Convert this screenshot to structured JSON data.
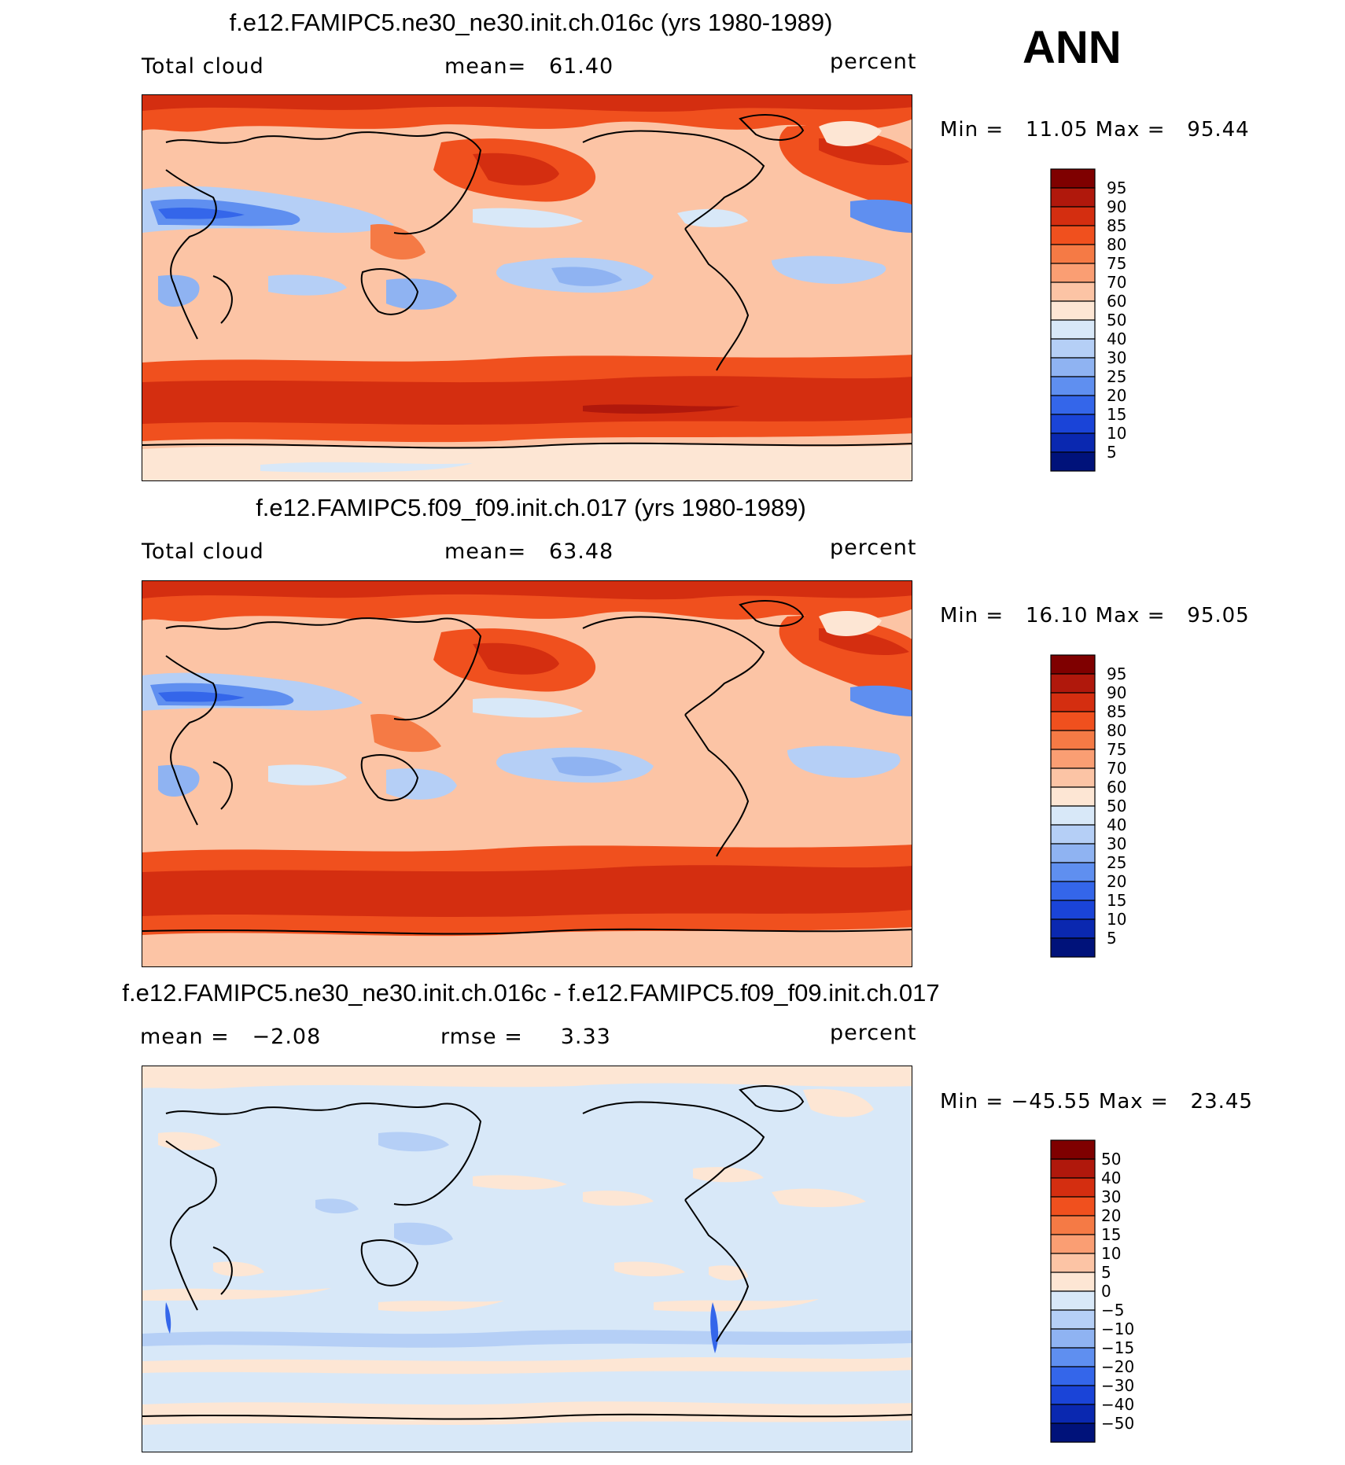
{
  "season": "ANN",
  "panels": [
    {
      "title": "f.e12.FAMIPC5.ne30_ne30.init.ch.016c (yrs 1980-1989)",
      "left_label": "Total cloud",
      "center_label": "mean=   61.40",
      "units": "percent",
      "minmax": "Min =   11.05 Max =   95.44",
      "kind": "field",
      "colorbar": {
        "labels": [
          "95",
          "90",
          "85",
          "80",
          "75",
          "70",
          "60",
          "50",
          "40",
          "30",
          "25",
          "20",
          "15",
          "10",
          "5"
        ],
        "colors": [
          "#7f0000",
          "#b0180c",
          "#d42e10",
          "#f0501e",
          "#f57a45",
          "#fa9e73",
          "#fcc4a5",
          "#fde6d4",
          "#d8e8f8",
          "#b5cff6",
          "#8fb3f2",
          "#5f8ff0",
          "#3466ea",
          "#1a44d8",
          "#0a28b0",
          "#00127a"
        ]
      }
    },
    {
      "title": "f.e12.FAMIPC5.f09_f09.init.ch.017 (yrs 1980-1989)",
      "left_label": "Total cloud",
      "center_label": "mean=   63.48",
      "units": "percent",
      "minmax": "Min =   16.10 Max =   95.05",
      "kind": "field",
      "colorbar": {
        "labels": [
          "95",
          "90",
          "85",
          "80",
          "75",
          "70",
          "60",
          "50",
          "40",
          "30",
          "25",
          "20",
          "15",
          "10",
          "5"
        ],
        "colors": [
          "#7f0000",
          "#b0180c",
          "#d42e10",
          "#f0501e",
          "#f57a45",
          "#fa9e73",
          "#fcc4a5",
          "#fde6d4",
          "#d8e8f8",
          "#b5cff6",
          "#8fb3f2",
          "#5f8ff0",
          "#3466ea",
          "#1a44d8",
          "#0a28b0",
          "#00127a"
        ]
      }
    },
    {
      "title": "f.e12.FAMIPC5.ne30_ne30.init.ch.016c - f.e12.FAMIPC5.f09_f09.init.ch.017",
      "left_label": "mean =   −2.08",
      "center_label": "rmse =     3.33",
      "units": "percent",
      "minmax": "Min = −45.55 Max =   23.45",
      "kind": "diff",
      "colorbar": {
        "labels": [
          "50",
          "40",
          "30",
          "20",
          "15",
          "10",
          "5",
          "0",
          "−5",
          "−10",
          "−15",
          "−20",
          "−30",
          "−40",
          "−50"
        ],
        "colors": [
          "#7f0000",
          "#b0180c",
          "#d42e10",
          "#f0501e",
          "#f57a45",
          "#fa9e73",
          "#fcc4a5",
          "#fde6d4",
          "#d8e8f8",
          "#b5cff6",
          "#8fb3f2",
          "#5f8ff0",
          "#3466ea",
          "#1a44d8",
          "#0a28b0",
          "#00127a"
        ]
      }
    }
  ]
}
